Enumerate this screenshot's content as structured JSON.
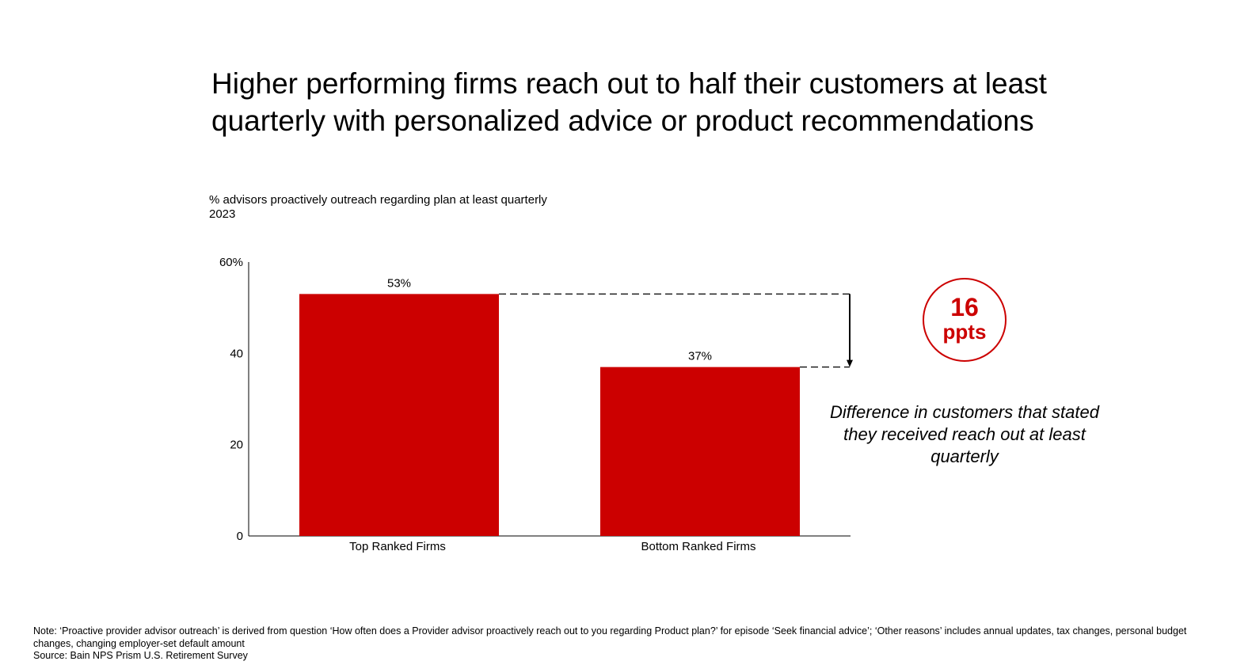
{
  "title": "Higher performing firms reach out to half their customers at least quarterly with personalized advice or product recommendations",
  "subtitle": {
    "line1": "% advisors proactively outreach regarding plan at least quarterly",
    "line2": "2023"
  },
  "callout": {
    "value": "16",
    "unit": "ppts",
    "description": "Difference in customers that stated they received reach out at least quarterly"
  },
  "footer": {
    "note": "Note: ‘Proactive provider advisor outreach’ is derived from question ‘How often does a Provider advisor proactively reach out to you regarding Product plan?’ for episode ‘Seek financial advice’; ‘Other reasons’ includes annual updates, tax changes, personal budget changes, changing employer-set default amount",
    "source": "Source: Bain NPS Prism U.S. Retirement Survey"
  },
  "colors": {
    "bar": "#cc0000",
    "accent": "#cc0000"
  },
  "chart_data": {
    "type": "bar",
    "categories": [
      "Top Ranked Firms",
      "Bottom Ranked Firms"
    ],
    "values": [
      53,
      37
    ],
    "data_labels": [
      "53%",
      "37%"
    ],
    "ylim": [
      0,
      60
    ],
    "yticks": [
      0,
      20,
      40,
      60
    ],
    "ytick_labels": [
      "0",
      "20",
      "40",
      "60%"
    ],
    "xlabel": "",
    "ylabel": "",
    "grid": false
  }
}
